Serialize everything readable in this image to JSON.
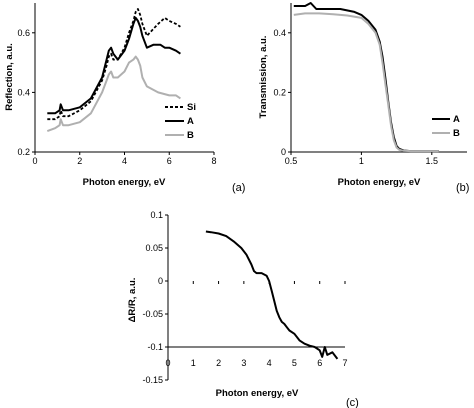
{
  "chart_data": [
    {
      "id": "a",
      "type": "line",
      "panel_label": "(a)",
      "xlabel": "Photon energy, eV",
      "ylabel": "Reflection, a.u.",
      "xlim": [
        0,
        8
      ],
      "ylim": [
        0.2,
        0.7
      ],
      "xticks": [
        "0",
        "2",
        "4",
        "6",
        "8"
      ],
      "yticks": [
        "0.2",
        "0.4",
        "0.6"
      ],
      "legend_position": "bottom-right",
      "series": [
        {
          "name": "Si",
          "color": "#000000",
          "style": "dotted",
          "x": [
            0.55,
            0.9,
            1.1,
            1.15,
            1.25,
            1.5,
            2.0,
            2.5,
            3.0,
            3.2,
            3.3,
            3.4,
            3.5,
            3.7,
            4.0,
            4.2,
            4.4,
            4.5,
            4.6,
            4.7,
            4.8,
            5.0,
            5.5,
            5.8,
            6.0,
            6.3,
            6.5
          ],
          "y": [
            0.31,
            0.31,
            0.32,
            0.34,
            0.32,
            0.32,
            0.34,
            0.37,
            0.44,
            0.49,
            0.52,
            0.53,
            0.51,
            0.51,
            0.55,
            0.6,
            0.64,
            0.67,
            0.68,
            0.66,
            0.63,
            0.59,
            0.63,
            0.65,
            0.64,
            0.63,
            0.62
          ]
        },
        {
          "name": "A",
          "color": "#000000",
          "style": "solid",
          "x": [
            0.55,
            0.9,
            1.1,
            1.15,
            1.25,
            1.5,
            2.0,
            2.5,
            3.0,
            3.2,
            3.3,
            3.4,
            3.5,
            3.7,
            4.0,
            4.2,
            4.4,
            4.5,
            4.6,
            4.7,
            4.8,
            5.0,
            5.3,
            5.6,
            5.8,
            6.0,
            6.3,
            6.5
          ],
          "y": [
            0.33,
            0.33,
            0.34,
            0.36,
            0.34,
            0.34,
            0.35,
            0.38,
            0.45,
            0.51,
            0.54,
            0.55,
            0.53,
            0.51,
            0.54,
            0.58,
            0.63,
            0.65,
            0.64,
            0.62,
            0.59,
            0.55,
            0.56,
            0.56,
            0.55,
            0.55,
            0.54,
            0.53
          ]
        },
        {
          "name": "B",
          "color": "#b0b0b0",
          "style": "solid",
          "x": [
            0.55,
            0.9,
            1.1,
            1.15,
            1.25,
            1.5,
            2.0,
            2.5,
            3.0,
            3.2,
            3.3,
            3.4,
            3.5,
            3.7,
            4.0,
            4.2,
            4.4,
            4.5,
            4.6,
            4.7,
            4.8,
            5.0,
            5.5,
            6.0,
            6.3,
            6.5
          ],
          "y": [
            0.27,
            0.28,
            0.29,
            0.31,
            0.29,
            0.29,
            0.3,
            0.33,
            0.4,
            0.44,
            0.46,
            0.47,
            0.45,
            0.45,
            0.47,
            0.5,
            0.51,
            0.52,
            0.51,
            0.49,
            0.45,
            0.42,
            0.4,
            0.39,
            0.39,
            0.38
          ]
        }
      ]
    },
    {
      "id": "b",
      "type": "line",
      "panel_label": "(b)",
      "xlabel": "Photon energy, eV",
      "ylabel": "Transmission, a.u.",
      "xlim": [
        0.5,
        1.75
      ],
      "ylim": [
        0,
        0.5
      ],
      "xticks": [
        "0.5",
        "1",
        "1.5"
      ],
      "yticks": [
        "0",
        "0.2",
        "0.4"
      ],
      "legend_position": "bottom-right",
      "series": [
        {
          "name": "A",
          "color": "#000000",
          "style": "solid",
          "x": [
            0.52,
            0.6,
            0.64,
            0.68,
            0.75,
            0.85,
            0.95,
            1.0,
            1.05,
            1.1,
            1.13,
            1.15,
            1.17,
            1.19,
            1.21,
            1.23,
            1.25,
            1.27,
            1.3,
            1.35,
            1.55
          ],
          "y": [
            0.49,
            0.49,
            0.5,
            0.48,
            0.48,
            0.48,
            0.47,
            0.46,
            0.44,
            0.41,
            0.37,
            0.32,
            0.25,
            0.17,
            0.1,
            0.05,
            0.02,
            0.01,
            0.005,
            0.003,
            0.003
          ]
        },
        {
          "name": "B",
          "color": "#b0b0b0",
          "style": "solid",
          "x": [
            0.52,
            0.6,
            0.7,
            0.8,
            0.9,
            1.0,
            1.05,
            1.1,
            1.13,
            1.15,
            1.17,
            1.19,
            1.21,
            1.23,
            1.25,
            1.27,
            1.3,
            1.35,
            1.55
          ],
          "y": [
            0.46,
            0.465,
            0.465,
            0.462,
            0.458,
            0.45,
            0.43,
            0.4,
            0.36,
            0.3,
            0.23,
            0.16,
            0.09,
            0.04,
            0.015,
            0.007,
            0.004,
            0.003,
            0.003
          ]
        }
      ]
    },
    {
      "id": "c",
      "type": "line",
      "panel_label": "(c)",
      "xlabel": "Photon energy, eV",
      "ylabel": "ΔR/R, a.u.",
      "xlim": [
        0,
        7
      ],
      "ylim": [
        -0.15,
        0.1
      ],
      "xticks": [
        "0",
        "1",
        "2",
        "3",
        "4",
        "5",
        "6",
        "7"
      ],
      "yticks": [
        "-0.15",
        "-0.1",
        "-0.05",
        "0",
        "0.05",
        "0.1"
      ],
      "series": [
        {
          "name": "",
          "color": "#000000",
          "style": "solid",
          "x": [
            1.5,
            1.7,
            2.0,
            2.3,
            2.6,
            2.9,
            3.1,
            3.3,
            3.4,
            3.5,
            3.7,
            3.9,
            4.0,
            4.1,
            4.2,
            4.3,
            4.4,
            4.5,
            4.6,
            4.7,
            4.8,
            5.0,
            5.2,
            5.4,
            5.6,
            5.8,
            6.0,
            6.1,
            6.2,
            6.3,
            6.5,
            6.7
          ],
          "y": [
            0.075,
            0.074,
            0.072,
            0.068,
            0.06,
            0.05,
            0.04,
            0.025,
            0.015,
            0.012,
            0.012,
            0.008,
            0.0,
            -0.015,
            -0.03,
            -0.045,
            -0.055,
            -0.062,
            -0.065,
            -0.07,
            -0.075,
            -0.08,
            -0.09,
            -0.095,
            -0.098,
            -0.1,
            -0.105,
            -0.115,
            -0.1,
            -0.112,
            -0.108,
            -0.118
          ]
        }
      ]
    }
  ]
}
